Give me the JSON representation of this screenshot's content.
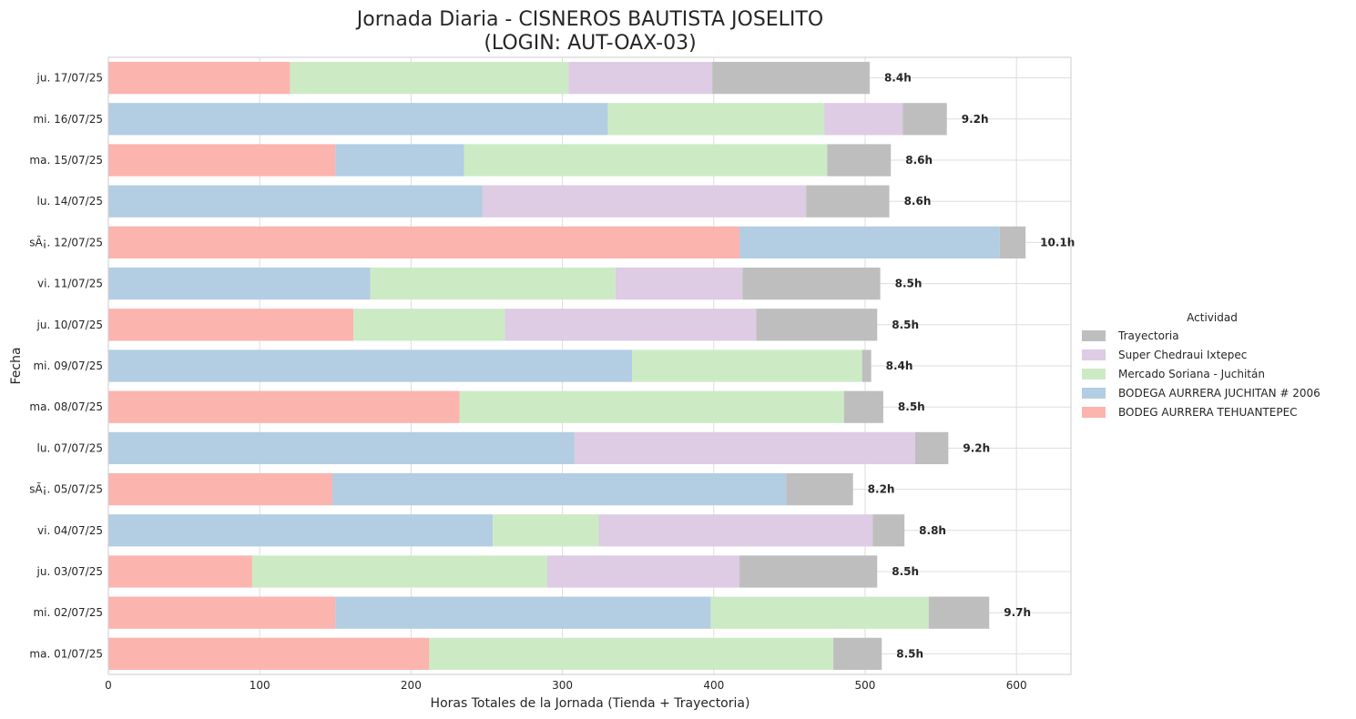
{
  "chart_data": {
    "type": "bar",
    "orientation": "horizontal",
    "stacked": true,
    "title": "Jornada Diaria - CISNEROS BAUTISTA JOSELITO",
    "subtitle": "(LOGIN: AUT-OAX-03)",
    "xlabel": "Horas Totales de la Jornada (Tienda + Trayectoria)",
    "ylabel": "Fecha",
    "xlim": [
      0,
      636
    ],
    "xticks": [
      0,
      100,
      200,
      300,
      400,
      500,
      600
    ],
    "grid": true,
    "legend_title": "Actividad",
    "legend_position": "right",
    "categories": [
      "ju. 17/07/25",
      "mi. 16/07/25",
      "ma. 15/07/25",
      "lu. 14/07/25",
      "sÃ¡. 12/07/25",
      "vi. 11/07/25",
      "ju. 10/07/25",
      "mi. 09/07/25",
      "ma. 08/07/25",
      "lu. 07/07/25",
      "sÃ¡. 05/07/25",
      "vi. 04/07/25",
      "ju. 03/07/25",
      "mi. 02/07/25",
      "ma. 01/07/25"
    ],
    "totals": [
      "8.4h",
      "9.2h",
      "8.6h",
      "8.6h",
      "10.1h",
      "8.5h",
      "8.5h",
      "8.4h",
      "8.5h",
      "9.2h",
      "8.2h",
      "8.8h",
      "8.5h",
      "9.7h",
      "8.5h"
    ],
    "series": [
      {
        "name": "BODEG AURRERA TEHUANTEPEC",
        "color": "#fbb4ae",
        "values": [
          120,
          0,
          150,
          0,
          417,
          0,
          162,
          0,
          232,
          0,
          148,
          0,
          95,
          150,
          212
        ]
      },
      {
        "name": "BODEGA AURRERA JUCHITAN # 2006",
        "color": "#b3cde3",
        "values": [
          0,
          330,
          85,
          247,
          172,
          173,
          0,
          346,
          0,
          308,
          300,
          254,
          0,
          248,
          0
        ]
      },
      {
        "name": "Mercado Soriana - Juchitán",
        "color": "#ccebc5",
        "values": [
          184,
          143,
          240,
          0,
          0,
          162,
          100,
          152,
          254,
          0,
          0,
          70,
          195,
          144,
          267
        ]
      },
      {
        "name": "Super Chedraui Ixtepec",
        "color": "#decbe4",
        "values": [
          95,
          52,
          0,
          214,
          0,
          84,
          166,
          0,
          0,
          225,
          0,
          181,
          127,
          0,
          0
        ]
      },
      {
        "name": "Trayectoria",
        "color": "#bebebe",
        "values": [
          104,
          29,
          42,
          55,
          17,
          91,
          80,
          6,
          26,
          22,
          44,
          21,
          91,
          40,
          32
        ]
      }
    ],
    "legend_order": [
      "Trayectoria",
      "Super Chedraui Ixtepec",
      "Mercado Soriana - Juchitán",
      "BODEGA AURRERA JUCHITAN # 2006",
      "BODEG AURRERA TEHUANTEPEC"
    ]
  }
}
